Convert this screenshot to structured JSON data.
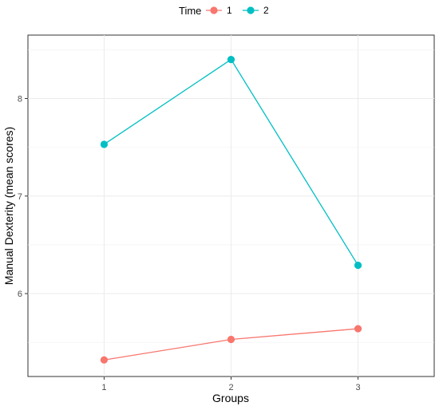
{
  "chart_data": {
    "type": "line",
    "xlabel": "Groups",
    "ylabel": "Manual Dexterity (mean scores)",
    "categories": [
      "1",
      "2",
      "3"
    ],
    "ylim": [
      5.15,
      8.65
    ],
    "yticks": [
      6,
      7,
      8
    ],
    "grid": true,
    "legend": {
      "title": "Time",
      "position": "top"
    },
    "series": [
      {
        "name": "1",
        "color": "#F8766D",
        "values": [
          5.32,
          5.53,
          5.64
        ]
      },
      {
        "name": "2",
        "color": "#00BFC4",
        "values": [
          7.53,
          8.4,
          6.29
        ]
      }
    ]
  }
}
